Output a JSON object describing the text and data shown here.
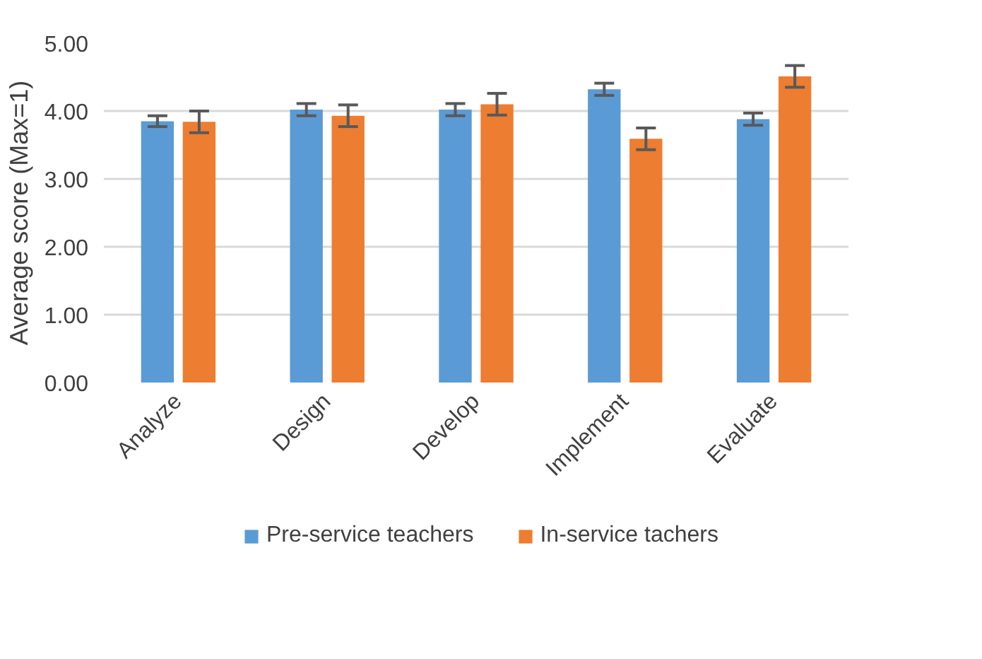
{
  "chart_data": {
    "type": "bar",
    "ylabel": "Average score (Max=1)",
    "categories": [
      "Analyze",
      "Design",
      "Develop",
      "Implement",
      "Evaluate"
    ],
    "series": [
      {
        "name": "Pre-service teachers",
        "color": "#5b9bd5",
        "values": [
          3.85,
          4.02,
          4.02,
          4.32,
          3.88
        ],
        "errors": [
          0.08,
          0.09,
          0.09,
          0.09,
          0.09
        ]
      },
      {
        "name": "In-service tachers",
        "color": "#ed7d31",
        "values": [
          3.84,
          3.93,
          4.1,
          3.59,
          4.51
        ],
        "errors": [
          0.16,
          0.16,
          0.16,
          0.16,
          0.16
        ]
      }
    ],
    "ylim": [
      0,
      5
    ],
    "yticks": [
      {
        "value": 0,
        "label": "0.00"
      },
      {
        "value": 1,
        "label": "1.00"
      },
      {
        "value": 2,
        "label": "2.00"
      },
      {
        "value": 3,
        "label": "3.00"
      },
      {
        "value": 4,
        "label": "4.00"
      },
      {
        "value": 5,
        "label": "5.00"
      }
    ],
    "grid": "y",
    "legend": "bottom"
  }
}
